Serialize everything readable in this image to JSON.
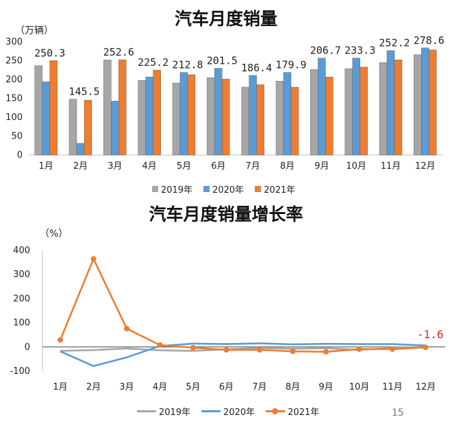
{
  "chart_data": [
    {
      "type": "bar",
      "title": "汽车月度销量",
      "ylabel": "（万辆）",
      "categories": [
        "1月",
        "2月",
        "3月",
        "4月",
        "5月",
        "6月",
        "7月",
        "8月",
        "9月",
        "10月",
        "11月",
        "12月"
      ],
      "series": [
        {
          "name": "2019年",
          "color": "#a6a6a6",
          "values": [
            237,
            148,
            252,
            198,
            191,
            205,
            180,
            196,
            227,
            229,
            245,
            266
          ]
        },
        {
          "name": "2020年",
          "color": "#5b9bd5",
          "values": [
            194,
            31,
            143,
            207,
            219,
            230,
            211,
            219,
            257,
            257,
            277,
            284
          ]
        },
        {
          "name": "2021年",
          "color": "#ed7d31",
          "values": [
            250.3,
            145.5,
            252.6,
            225.2,
            212.8,
            201.5,
            186.4,
            179.9,
            206.7,
            233.3,
            252.2,
            278.6
          ]
        }
      ],
      "data_labels": [
        "250.3",
        "145.5",
        "252.6",
        "225.2",
        "212.8",
        "201.5",
        "186.4",
        "179.9",
        "206.7",
        "233.3",
        "252.2",
        "278.6"
      ],
      "ylim": [
        0,
        300
      ],
      "yticks": [
        "0",
        "50",
        "100",
        "150",
        "200",
        "250",
        "300"
      ],
      "legend_position": "bottom",
      "grid": false
    },
    {
      "type": "line",
      "title": "汽车月度销量增长率",
      "ylabel": "（%）",
      "categories": [
        "1月",
        "2月",
        "3月",
        "4月",
        "5月",
        "6月",
        "7月",
        "8月",
        "9月",
        "10月",
        "11月",
        "12月"
      ],
      "series": [
        {
          "name": "2019年",
          "color": "#a6a6a6",
          "values": [
            -16,
            -13,
            -6,
            -14,
            -16,
            -10,
            -4,
            -7,
            -5,
            -12,
            -4,
            0
          ]
        },
        {
          "name": "2020年",
          "color": "#5b9bd5",
          "values": [
            -18,
            -79,
            -43,
            4,
            14,
            12,
            15,
            11,
            13,
            12,
            12,
            6
          ]
        },
        {
          "name": "2021年",
          "color": "#ed7d31",
          "values": [
            29,
            365,
            76,
            8,
            -3,
            -12,
            -12,
            -18,
            -20,
            -9,
            -9,
            -1.6
          ]
        }
      ],
      "last_label": "-1.6",
      "ylim": [
        -100,
        400
      ],
      "yticks": [
        "-100",
        "0",
        "100",
        "200",
        "300",
        "400"
      ],
      "legend_position": "bottom",
      "grid": false
    }
  ],
  "page_number": "15"
}
